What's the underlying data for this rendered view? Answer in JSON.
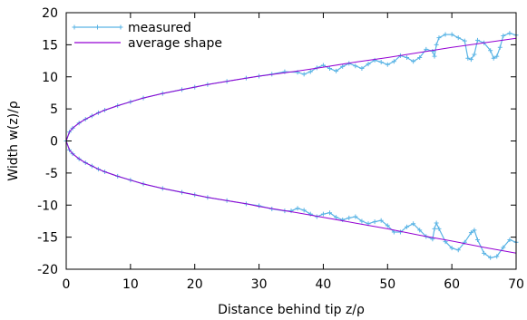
{
  "chart_data": {
    "type": "line",
    "title": "",
    "xlabel": "Distance behind tip z/ρ",
    "ylabel": "Width w(z)/ρ",
    "xlim": [
      0,
      70
    ],
    "ylim": [
      -20,
      20
    ],
    "xticks": [
      0,
      10,
      20,
      30,
      40,
      50,
      60,
      70
    ],
    "yticks": [
      -20,
      -15,
      -10,
      -5,
      0,
      5,
      10,
      15,
      20
    ],
    "grid": false,
    "legend": "top-left",
    "series": [
      {
        "name": "measured",
        "color": "#5ab4e5",
        "marker": "plus",
        "branches": [
          {
            "x": [
              0,
              0.5,
              1,
              2,
              3,
              4,
              5,
              6,
              8,
              10,
              12,
              15,
              18,
              20,
              22,
              25,
              28,
              30,
              32,
              34,
              36,
              37,
              38,
              39,
              40,
              41,
              42,
              43,
              44,
              45,
              46,
              47,
              48,
              49,
              50,
              51,
              52,
              53,
              54,
              55,
              56,
              57,
              57.3,
              57.6,
              58,
              59,
              60,
              61,
              62,
              62.5,
              63,
              63.5,
              64,
              65,
              66,
              66.5,
              67,
              67.5,
              68,
              69,
              70
            ],
            "y": [
              0,
              1.4,
              2.0,
              2.8,
              3.4,
              3.9,
              4.4,
              4.8,
              5.5,
              6.1,
              6.7,
              7.4,
              8.0,
              8.4,
              8.8,
              9.3,
              9.8,
              10.1,
              10.4,
              10.8,
              10.7,
              10.4,
              10.8,
              11.4,
              11.8,
              11.3,
              10.9,
              11.6,
              12.1,
              11.7,
              11.3,
              12.0,
              12.6,
              12.3,
              11.9,
              12.4,
              13.3,
              13.0,
              12.4,
              13.0,
              14.3,
              14.0,
              13.2,
              15.0,
              16.1,
              16.6,
              16.6,
              16.1,
              15.6,
              12.9,
              12.7,
              13.5,
              15.7,
              15.3,
              14.1,
              12.9,
              13.2,
              14.6,
              16.4,
              16.8,
              16.5
            ]
          },
          {
            "x": [
              0,
              0.5,
              1,
              2,
              3,
              4,
              5,
              6,
              8,
              10,
              12,
              15,
              18,
              20,
              22,
              25,
              28,
              30,
              32,
              34,
              35,
              36,
              37,
              38,
              39,
              40,
              41,
              42,
              43,
              44,
              45,
              46,
              47,
              48,
              49,
              50,
              51,
              52,
              53,
              54,
              55,
              56,
              57,
              57.3,
              57.6,
              58,
              59,
              60,
              61,
              62,
              63,
              63.5,
              64,
              65,
              66,
              67,
              68,
              69,
              70
            ],
            "y": [
              0,
              -1.4,
              -2.0,
              -2.8,
              -3.4,
              -3.9,
              -4.4,
              -4.8,
              -5.5,
              -6.1,
              -6.7,
              -7.4,
              -8.0,
              -8.4,
              -8.8,
              -9.3,
              -9.8,
              -10.1,
              -10.6,
              -10.9,
              -10.9,
              -10.5,
              -10.8,
              -11.4,
              -11.8,
              -11.4,
              -11.2,
              -11.9,
              -12.3,
              -12.0,
              -11.8,
              -12.5,
              -12.9,
              -12.6,
              -12.4,
              -13.2,
              -14.2,
              -14.2,
              -13.4,
              -12.9,
              -13.9,
              -14.9,
              -15.3,
              -13.7,
              -12.8,
              -13.7,
              -15.7,
              -16.7,
              -17.0,
              -15.8,
              -14.3,
              -13.9,
              -15.4,
              -17.5,
              -18.2,
              -18.0,
              -16.6,
              -15.4,
              -15.8
            ]
          }
        ]
      },
      {
        "name": "average shape",
        "color": "#9400d3",
        "marker": "none",
        "branches": [
          {
            "x": [
              0,
              0.5,
              1,
              2,
              3,
              4,
              5,
              6,
              8,
              10,
              12,
              15,
              18,
              20,
              22,
              25,
              28,
              30,
              33,
              36,
              40,
              45,
              50,
              55,
              60,
              65,
              70
            ],
            "y": [
              0,
              1.4,
              2.0,
              2.8,
              3.4,
              3.9,
              4.4,
              4.8,
              5.5,
              6.1,
              6.7,
              7.4,
              8.0,
              8.4,
              8.8,
              9.3,
              9.8,
              10.1,
              10.5,
              10.9,
              11.5,
              12.3,
              13.0,
              13.8,
              14.6,
              15.3,
              16.0
            ]
          },
          {
            "x": [
              0,
              0.5,
              1,
              2,
              3,
              4,
              5,
              6,
              8,
              10,
              12,
              15,
              18,
              20,
              22,
              25,
              28,
              30,
              33,
              36,
              40,
              45,
              50,
              55,
              60,
              65,
              70
            ],
            "y": [
              0,
              -1.4,
              -2.0,
              -2.8,
              -3.4,
              -3.9,
              -4.4,
              -4.8,
              -5.5,
              -6.1,
              -6.7,
              -7.4,
              -8.0,
              -8.4,
              -8.8,
              -9.3,
              -9.8,
              -10.2,
              -10.7,
              -11.2,
              -11.9,
              -12.8,
              -13.7,
              -14.7,
              -15.6,
              -16.6,
              -17.5
            ]
          }
        ]
      }
    ]
  }
}
